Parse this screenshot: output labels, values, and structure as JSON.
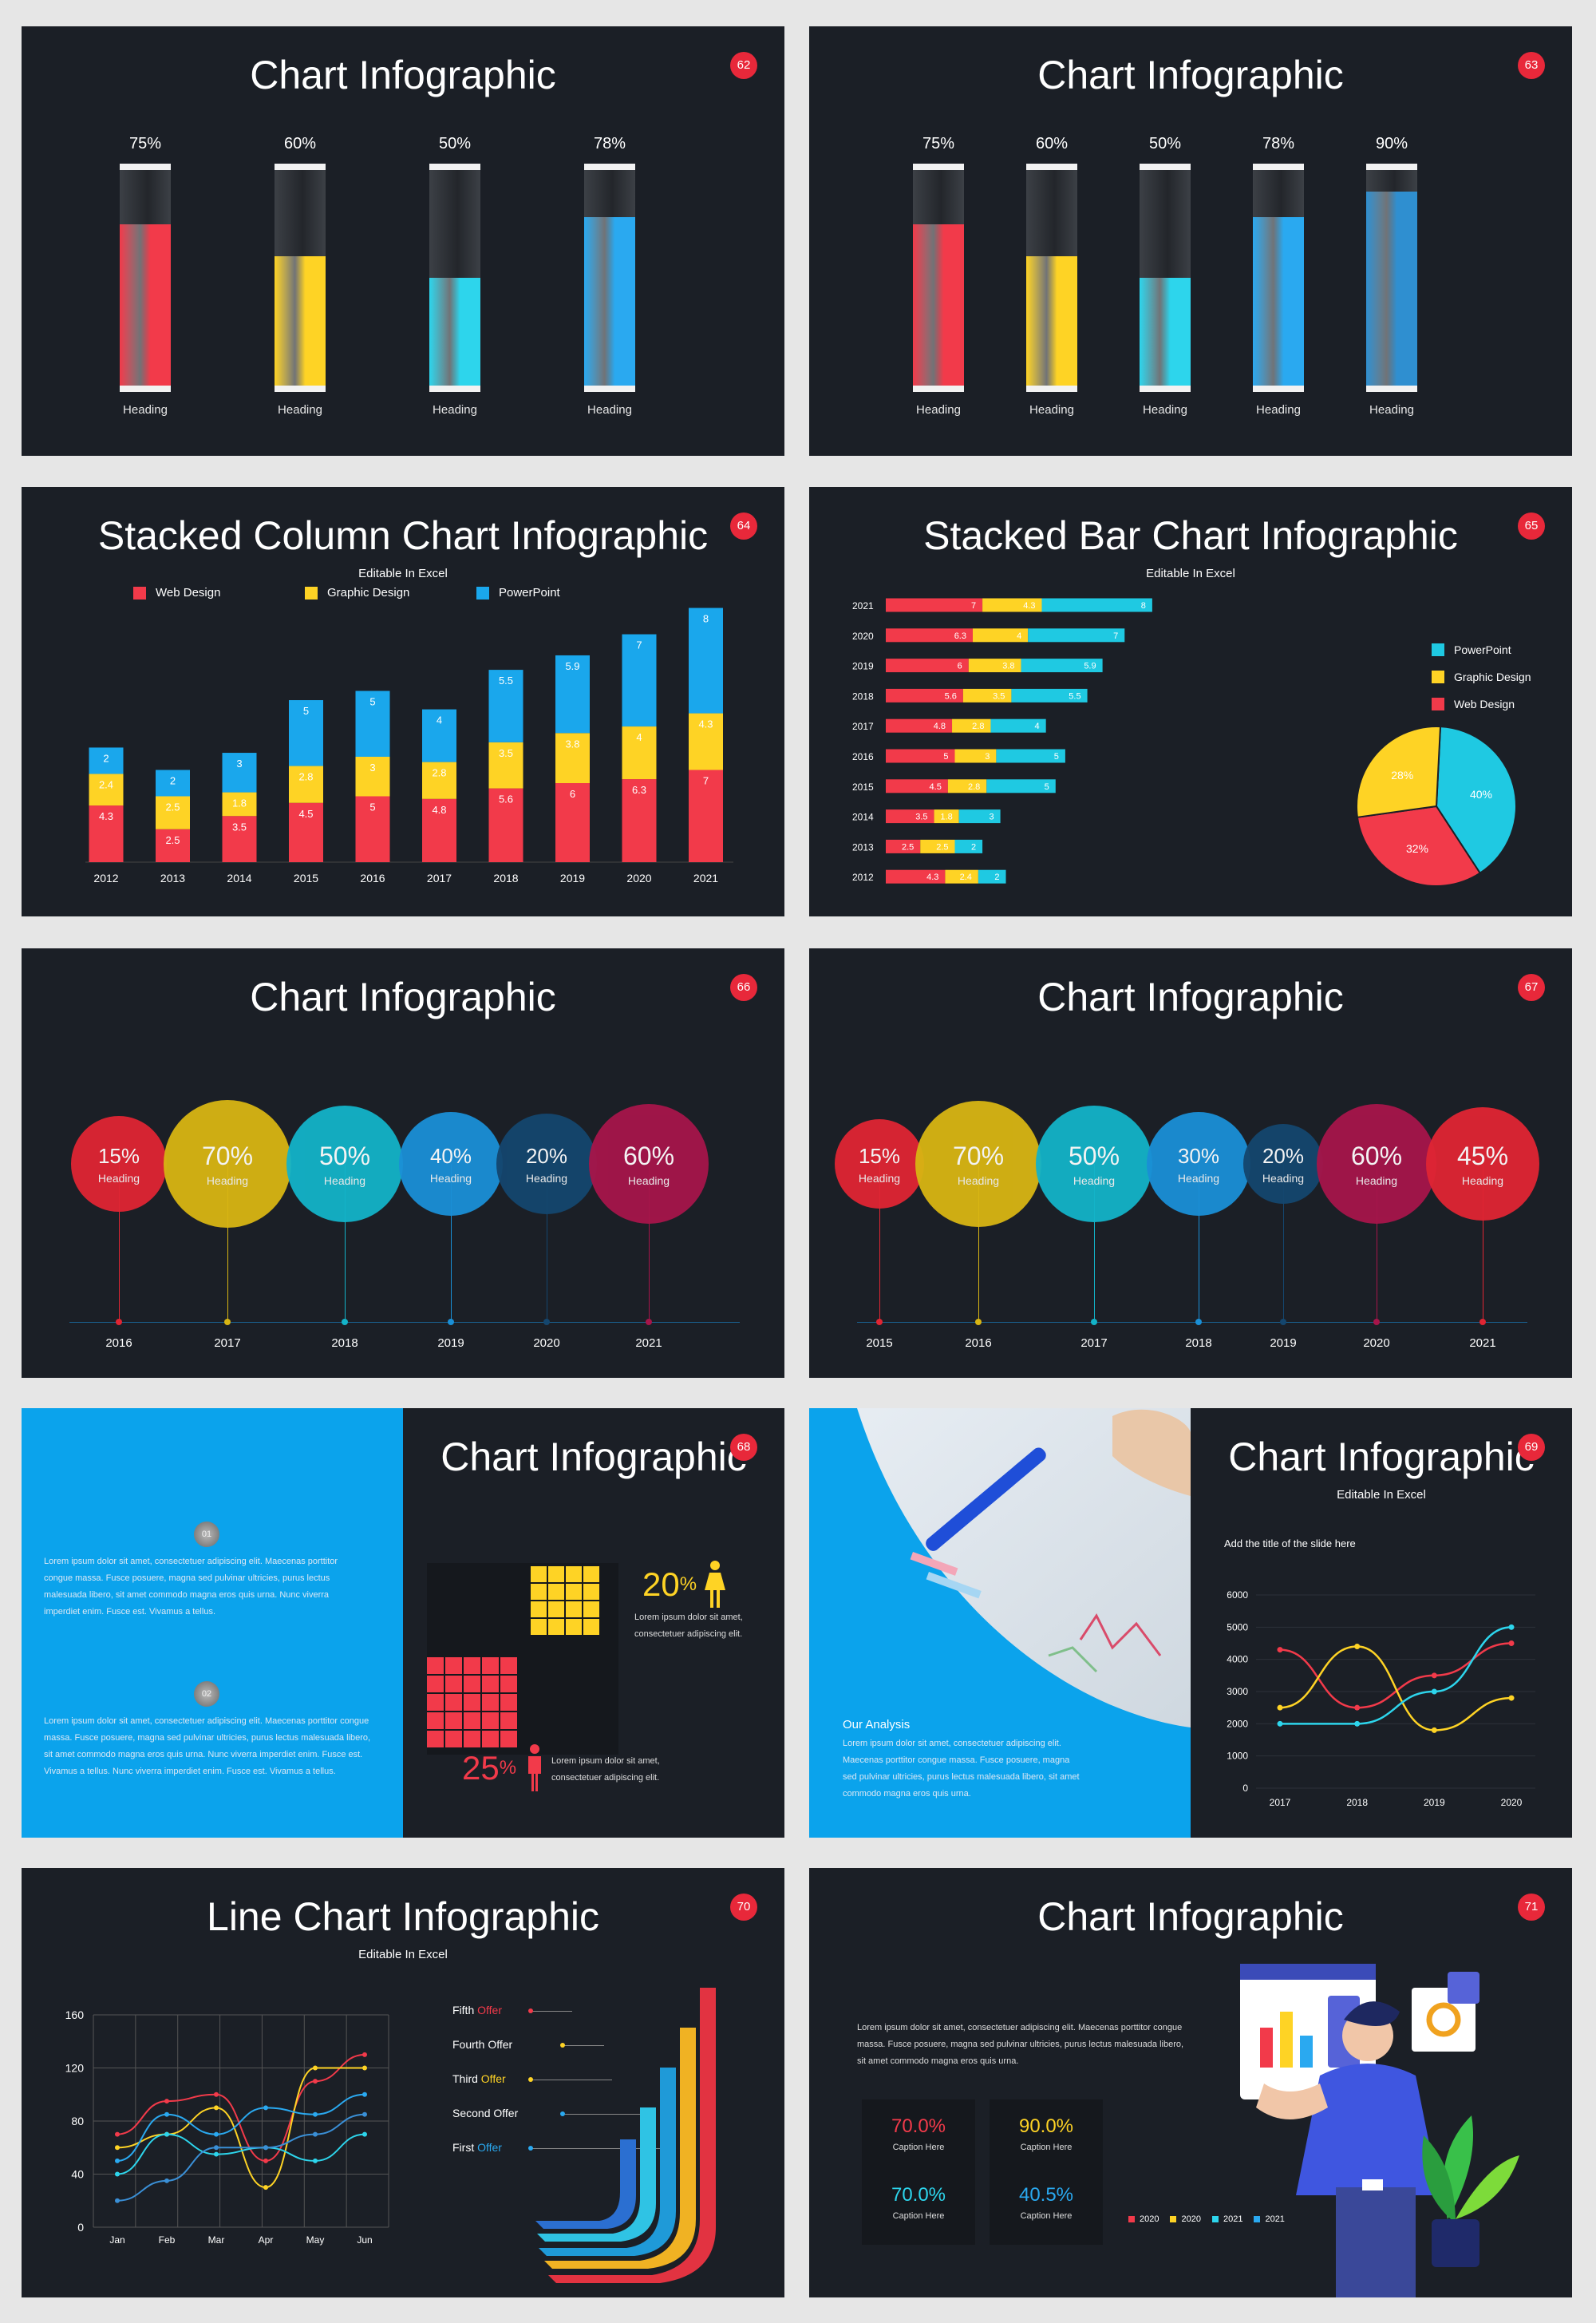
{
  "slides": [
    {
      "num": "62",
      "title": "Chart Infographic",
      "bars": [
        {
          "pct": "75%",
          "value": 75,
          "color": "#f23a4a",
          "label": "Heading"
        },
        {
          "pct": "60%",
          "value": 60,
          "color": "#fed325",
          "label": "Heading"
        },
        {
          "pct": "50%",
          "value": 50,
          "color": "#2dd5ec",
          "label": "Heading"
        },
        {
          "pct": "78%",
          "value": 78,
          "color": "#2aa9f0",
          "label": "Heading"
        }
      ]
    },
    {
      "num": "63",
      "title": "Chart Infographic",
      "bars": [
        {
          "pct": "75%",
          "value": 75,
          "color": "#f23a4a",
          "label": "Heading"
        },
        {
          "pct": "60%",
          "value": 60,
          "color": "#fed325",
          "label": "Heading"
        },
        {
          "pct": "50%",
          "value": 50,
          "color": "#2dd5ec",
          "label": "Heading"
        },
        {
          "pct": "78%",
          "value": 78,
          "color": "#2aa9f0",
          "label": "Heading"
        },
        {
          "pct": "90%",
          "value": 90,
          "color": "#2f8fd0",
          "label": "Heading"
        }
      ]
    },
    {
      "num": "64",
      "title": "Stacked Column Chart Infographic",
      "subtitle": "Editable In Excel"
    },
    {
      "num": "65",
      "title": "Stacked Bar Chart Infographic",
      "subtitle": "Editable In Excel"
    },
    {
      "num": "66",
      "title": "Chart Infographic",
      "bubbles": [
        {
          "value": "15%",
          "label": "Heading",
          "year": "2016",
          "color": "#e02533"
        },
        {
          "value": "70%",
          "label": "Heading",
          "year": "2017",
          "color": "#d8b513"
        },
        {
          "value": "50%",
          "label": "Heading",
          "year": "2018",
          "color": "#13b3c8"
        },
        {
          "value": "40%",
          "label": "Heading",
          "year": "2019",
          "color": "#1a8fd6"
        },
        {
          "value": "20%",
          "label": "Heading",
          "year": "2020",
          "color": "#14466e"
        },
        {
          "value": "60%",
          "label": "Heading",
          "year": "2021",
          "color": "#a6154a"
        }
      ]
    },
    {
      "num": "67",
      "title": "Chart Infographic",
      "bubbles": [
        {
          "value": "15%",
          "label": "Heading",
          "year": "2015",
          "color": "#e02533"
        },
        {
          "value": "70%",
          "label": "Heading",
          "year": "2016",
          "color": "#d8b513"
        },
        {
          "value": "50%",
          "label": "Heading",
          "year": "2017",
          "color": "#13b3c8"
        },
        {
          "value": "30%",
          "label": "Heading",
          "year": "2018",
          "color": "#1a8fd6"
        },
        {
          "value": "20%",
          "label": "Heading",
          "year": "2019",
          "color": "#14466e"
        },
        {
          "value": "60%",
          "label": "Heading",
          "year": "2020",
          "color": "#a6154a"
        },
        {
          "value": "45%",
          "label": "Heading",
          "year": "2021",
          "color": "#e02533"
        }
      ]
    },
    {
      "num": "68",
      "title": "Chart Infographic",
      "badge1": "01",
      "text1": "Lorem ipsum dolor sit amet, consectetuer adipiscing elit. Maecenas porttitor congue massa. Fusce posuere, magna sed pulvinar ultricies, purus lectus malesuada libero, sit amet commodo magna eros quis urna. Nunc viverra imperdiet enim. Fusce est. Vivamus a tellus.",
      "badge2": "02",
      "text2": "Lorem ipsum dolor sit amet, consectetuer adipiscing elit. Maecenas porttitor congue massa. Fusce posuere, magna sed pulvinar ultricies, purus lectus malesuada libero, sit amet commodo magna eros quis urna. Nunc viverra imperdiet enim. Fusce est. Vivamus a tellus. Nunc viverra imperdiet enim. Fusce est. Vivamus a tellus.",
      "stat1": {
        "value": "20",
        "unit": "%",
        "text": "Lorem ipsum dolor sit amet, consectetuer adipiscing elit.",
        "color": "#fed325"
      },
      "stat2": {
        "value": "25",
        "unit": "%",
        "text": "Lorem ipsum dolor sit amet, consectetuer adipiscing elit.",
        "color": "#f23a4a"
      }
    },
    {
      "num": "69",
      "title": "Chart Infographic",
      "subtitle": "Editable In Excel",
      "analysis_title": "Our Analysis",
      "analysis_text": "Lorem ipsum dolor sit amet, consectetuer adipiscing elit. Maecenas porttitor congue massa. Fusce posuere, magna sed pulvinar ultricies, purus lectus malesuada libero, sit amet commodo magna eros quis urna.",
      "chart_title": "Add the title of the slide here"
    },
    {
      "num": "70",
      "title": "Line Chart Infographic",
      "subtitle": "Editable In Excel",
      "offers": [
        {
          "pre": "Fifth ",
          "hl": "Offer",
          "color": "#f23a4a"
        },
        {
          "pre": "Fourth Offer",
          "hl": "",
          "color": "#fed325"
        },
        {
          "pre": "Third ",
          "hl": "Offer",
          "color": "#fed325"
        },
        {
          "pre": "Second Offer",
          "hl": "",
          "color": "#2aa9f0"
        },
        {
          "pre": "First ",
          "hl": "Offer",
          "color": "#2aa9f0"
        }
      ]
    },
    {
      "num": "71",
      "title": "Chart Infographic",
      "text": "Lorem ipsum dolor sit amet, consectetuer adipiscing elit. Maecenas porttitor congue massa. Fusce posuere, magna sed pulvinar ultricies, purus lectus malesuada libero, sit amet commodo magna eros quis urna.",
      "stats": [
        {
          "value": "70.0%",
          "caption": "Caption Here",
          "color": "#f23a4a"
        },
        {
          "value": "90.0%",
          "caption": "Caption Here",
          "color": "#fed325"
        },
        {
          "value": "70.0%",
          "caption": "Caption Here",
          "color": "#2dd5ec"
        },
        {
          "value": "40.5%",
          "caption": "Caption Here",
          "color": "#2aa9f0"
        }
      ],
      "legend": [
        {
          "label": "2020",
          "color": "#f23a4a"
        },
        {
          "label": "2020",
          "color": "#fed325"
        },
        {
          "label": "2021",
          "color": "#2dd5ec"
        },
        {
          "label": "2021",
          "color": "#2aa9f0"
        }
      ]
    }
  ],
  "chart_data": [
    {
      "type": "bar",
      "chart": "stacked-column",
      "categories": [
        "2012",
        "2013",
        "2014",
        "2015",
        "2016",
        "2017",
        "2018",
        "2019",
        "2020",
        "2021"
      ],
      "series": [
        {
          "name": "Web Design",
          "color": "#f23a4a",
          "values": [
            4.3,
            2.5,
            3.5,
            4.5,
            5,
            4.8,
            5.6,
            6,
            6.3,
            7
          ]
        },
        {
          "name": "Graphic Design",
          "color": "#fed325",
          "values": [
            2.4,
            2.5,
            1.8,
            2.8,
            3,
            2.8,
            3.5,
            3.8,
            4,
            4.3
          ]
        },
        {
          "name": "PowerPoint",
          "color": "#1aa7ec",
          "values": [
            2,
            2,
            3,
            5,
            5,
            4,
            5.5,
            5.9,
            7,
            8
          ]
        }
      ]
    },
    {
      "type": "bar",
      "chart": "stacked-bar",
      "categories": [
        "2021",
        "2020",
        "2019",
        "2018",
        "2017",
        "2016",
        "2015",
        "2014",
        "2013",
        "2012"
      ],
      "series": [
        {
          "name": "Web Design",
          "color": "#f23a4a",
          "values": [
            7,
            6.3,
            6,
            5.6,
            4.8,
            5,
            4.5,
            3.5,
            2.5,
            4.3
          ]
        },
        {
          "name": "Graphic Design",
          "color": "#fed325",
          "values": [
            4.3,
            4,
            3.8,
            3.5,
            2.8,
            3,
            2.8,
            1.8,
            2.5,
            2.4
          ]
        },
        {
          "name": "PowerPoint",
          "color": "#1fc9e2",
          "values": [
            8,
            7,
            5.9,
            5.5,
            4,
            5,
            5,
            3,
            2,
            2
          ]
        }
      ],
      "legend_order": [
        "PowerPoint",
        "Graphic Design",
        "Web Design"
      ]
    },
    {
      "type": "pie",
      "labels": [
        "40%",
        "32%",
        "28%"
      ],
      "values": [
        40,
        32,
        28
      ],
      "colors": [
        "#1fc9e2",
        "#f23a4a",
        "#fed325"
      ]
    },
    {
      "type": "line",
      "x": [
        "2017",
        "2018",
        "2019",
        "2020"
      ],
      "yticks": [
        "0",
        "1000",
        "2000",
        "3000",
        "4000",
        "5000",
        "6000"
      ],
      "ylim": [
        0,
        6000
      ],
      "series": [
        {
          "color": "#f23a4a",
          "values": [
            4300,
            2500,
            3500,
            4500
          ]
        },
        {
          "color": "#fed325",
          "values": [
            2500,
            4400,
            1800,
            2800
          ]
        },
        {
          "color": "#2dd5ec",
          "values": [
            2000,
            2000,
            3000,
            5000
          ]
        }
      ]
    },
    {
      "type": "line",
      "x": [
        "Jan",
        "Feb",
        "Mar",
        "Apr",
        "May",
        "Jun"
      ],
      "yticks": [
        "0",
        "40",
        "80",
        "120",
        "160"
      ],
      "ylim": [
        0,
        160
      ],
      "series": [
        {
          "color": "#f23a4a",
          "values": [
            70,
            95,
            100,
            50,
            110,
            130
          ]
        },
        {
          "color": "#fed325",
          "values": [
            60,
            70,
            90,
            30,
            120,
            120
          ]
        },
        {
          "color": "#2aa9f0",
          "values": [
            50,
            85,
            70,
            90,
            85,
            100
          ]
        },
        {
          "color": "#2dd5ec",
          "values": [
            40,
            70,
            55,
            60,
            50,
            70
          ]
        },
        {
          "color": "#3a8fd6",
          "values": [
            20,
            35,
            60,
            60,
            70,
            85
          ]
        }
      ]
    }
  ]
}
